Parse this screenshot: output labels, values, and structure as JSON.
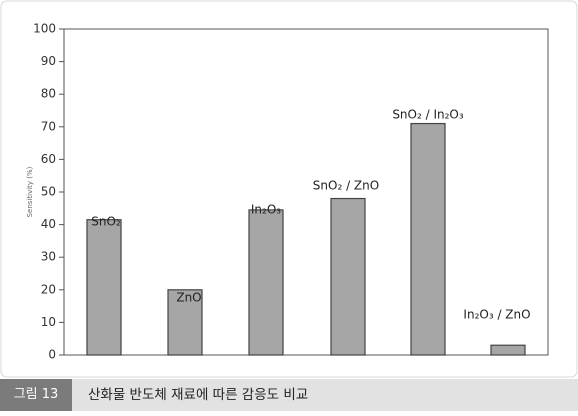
{
  "chart_data": {
    "type": "bar",
    "ylabel": "Sensitivity (%)",
    "categories": [
      "SnO₂",
      "ZnO",
      "In₂O₃",
      "SnO₂ / ZnO",
      "SnO₂ / In₂O₃",
      "In₂O₃ / ZnO"
    ],
    "values": [
      41.5,
      20,
      44.5,
      48,
      71,
      3
    ],
    "color": "#a6a6a6",
    "ylim": [
      0,
      100
    ],
    "yticks": [
      0,
      10,
      20,
      30,
      40,
      50,
      60,
      70,
      80,
      90,
      100
    ],
    "grid": false
  },
  "figure_caption": {
    "number": "그림 13",
    "text": "산화물 반도체 재료에 따른 감응도 비교"
  }
}
